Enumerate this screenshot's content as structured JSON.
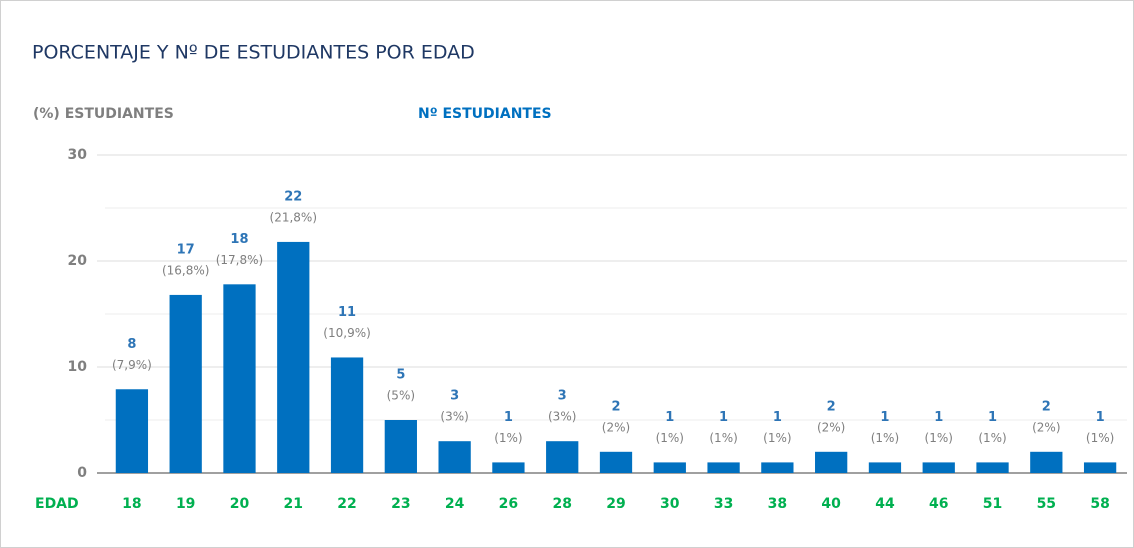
{
  "chart_data": {
    "type": "bar",
    "title": "PORCENTAJE Y Nº DE ESTUDIANTES POR EDAD",
    "y_label": "(%) ESTUDIANTES",
    "count_label": "Nº ESTUDIANTES",
    "x_label": "EDAD",
    "categories": [
      "18",
      "19",
      "20",
      "21",
      "22",
      "23",
      "24",
      "26",
      "28",
      "29",
      "30",
      "33",
      "38",
      "40",
      "44",
      "46",
      "51",
      "55",
      "58"
    ],
    "values": [
      7.9,
      16.8,
      17.8,
      21.8,
      10.9,
      5,
      3,
      1,
      3,
      2,
      1,
      1,
      1,
      2,
      1,
      1,
      1,
      2,
      1
    ],
    "value_labels": [
      "(7,9%)",
      "(16,8%)",
      "(17,8%)",
      "(21,8%)",
      "(10,9%)",
      "(5%)",
      "(3%)",
      "(1%)",
      "(3%)",
      "(2%)",
      "(1%)",
      "(1%)",
      "(1%)",
      "(2%)",
      "(1%)",
      "(1%)",
      "(1%)",
      "(2%)",
      "(1%)"
    ],
    "counts": [
      8,
      17,
      18,
      22,
      11,
      5,
      3,
      1,
      3,
      2,
      1,
      1,
      1,
      2,
      1,
      1,
      1,
      2,
      1
    ],
    "color": "#0070c0",
    "ylim": [
      0,
      30
    ],
    "yticks": [
      0,
      10,
      20,
      30
    ],
    "minor_yticks": [
      5,
      15,
      25
    ],
    "grid": true
  }
}
